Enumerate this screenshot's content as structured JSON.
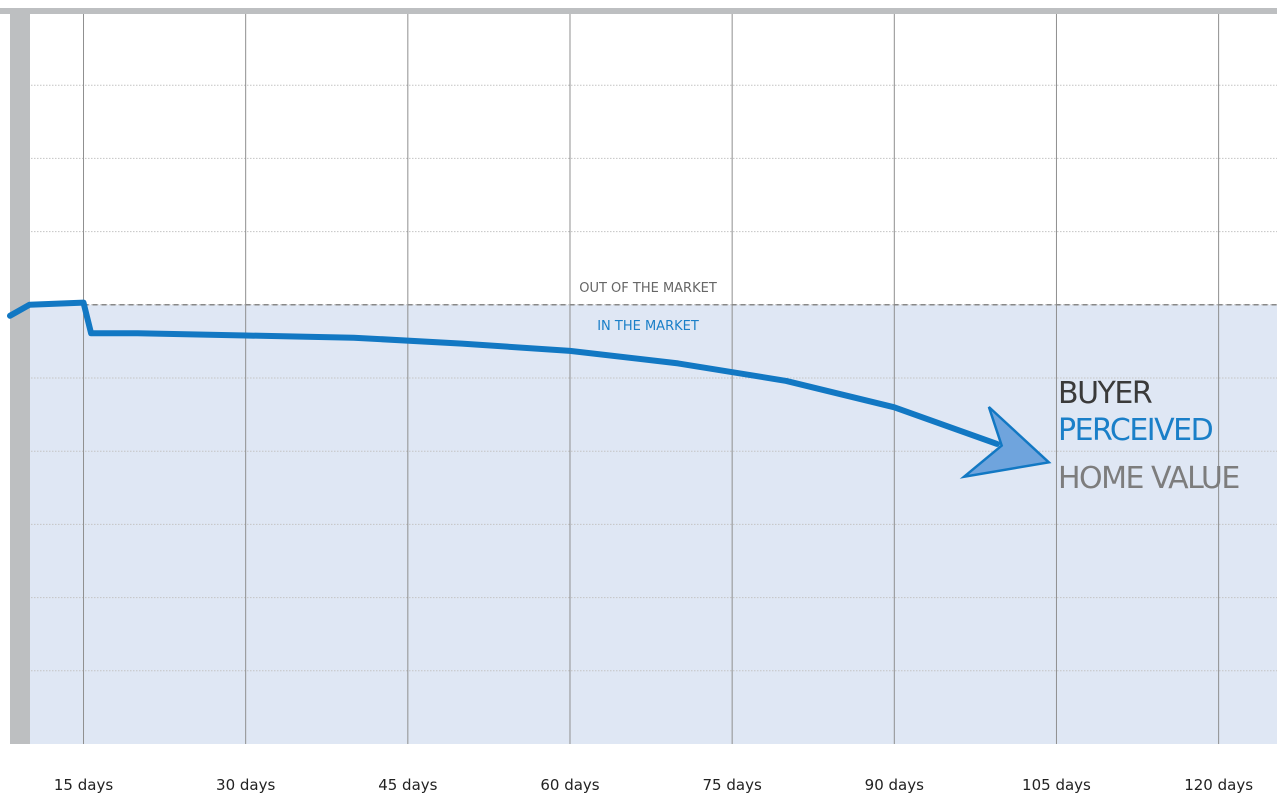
{
  "chart_data": {
    "type": "line",
    "title": "",
    "xlabel": "",
    "ylabel": "",
    "x_ticks": [
      15,
      30,
      45,
      60,
      75,
      90,
      105,
      120
    ],
    "x_tick_labels": [
      "15 days",
      "30 days",
      "45 days",
      "60 days",
      "75 days",
      "90 days",
      "105 days",
      "120 days"
    ],
    "xlim": [
      8.2,
      125.4
    ],
    "ylim": [
      0,
      10
    ],
    "grid": true,
    "reference_level": 6.0,
    "series": [
      {
        "x": [
          8.2,
          10,
          15,
          15.7,
          20,
          30,
          40,
          50,
          60,
          70,
          80,
          90,
          99.5
        ],
        "y": [
          5.85,
          6.0,
          6.03,
          5.61,
          5.61,
          5.58,
          5.55,
          5.47,
          5.37,
          5.2,
          4.96,
          4.6,
          4.1
        ]
      }
    ],
    "annotations": {
      "above_line": "OUT OF THE MARKET",
      "below_line": "IN THE MARKET",
      "callout": [
        "BUYER",
        "PERCEIVED",
        "HOME VALUE"
      ]
    },
    "colors": {
      "line": "#1278c3",
      "fill": "#dfe7f4",
      "grid_vertical": "#8f8f8f",
      "grid_horizontal": "#c4c4c4",
      "axis_bar": "#bdbfc1",
      "dashed": "#888888",
      "text_dark": "#3a3a3a",
      "text_blue": "#1a7fc8",
      "text_grey": "#7d7d7d"
    }
  }
}
